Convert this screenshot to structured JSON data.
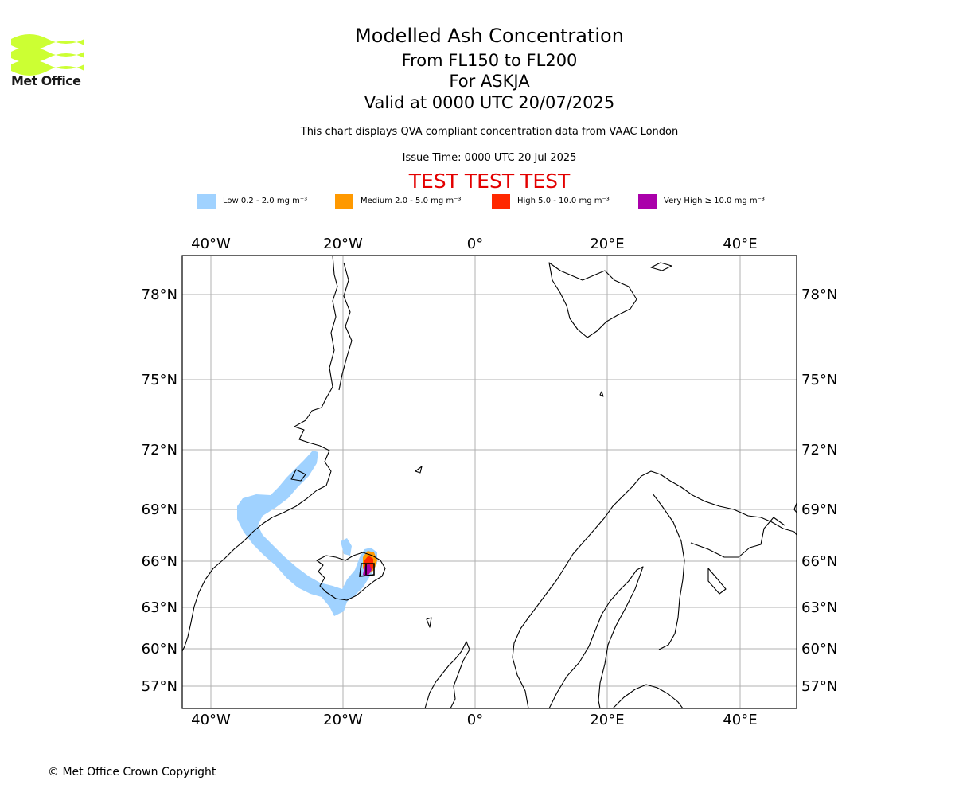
{
  "logo": {
    "text": "Met Office",
    "color": "#ccff33"
  },
  "title": {
    "line1": "Modelled Ash Concentration",
    "line2": "From FL150 to FL200",
    "line3": "For ASKJA",
    "line4": "Valid at 0000 UTC 20/07/2025"
  },
  "notes": {
    "description": "This chart displays QVA compliant concentration data from VAAC London",
    "issue_time": "Issue Time: 0000 UTC 20 Jul 2025",
    "test_banner": "TEST TEST TEST"
  },
  "legend": [
    {
      "label": "Low 0.2 - 2.0 mg m⁻³",
      "color": "#a0d2ff"
    },
    {
      "label": "Medium 2.0 - 5.0 mg m⁻³",
      "color": "#ff9900"
    },
    {
      "label": "High 5.0 - 10.0 mg m⁻³",
      "color": "#ff2800"
    },
    {
      "label": "Very High ≥ 10.0 mg m⁻³",
      "color": "#aa00aa"
    }
  ],
  "map": {
    "lon_ticks": [
      "40°W",
      "20°W",
      "0°",
      "20°E",
      "40°E"
    ],
    "lat_ticks": [
      "78°N",
      "75°N",
      "72°N",
      "69°N",
      "66°N",
      "63°N",
      "60°N",
      "57°N"
    ],
    "volcano": "ASKJA",
    "colors": {
      "land_outline": "#000000",
      "grid": "#b0b0b0"
    }
  },
  "footer": {
    "copyright": "© Met Office Crown Copyright"
  }
}
